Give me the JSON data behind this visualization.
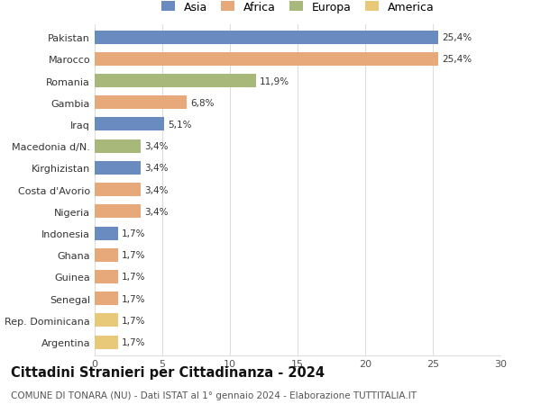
{
  "categories": [
    "Pakistan",
    "Marocco",
    "Romania",
    "Gambia",
    "Iraq",
    "Macedonia d/N.",
    "Kirghizistan",
    "Costa d'Avorio",
    "Nigeria",
    "Indonesia",
    "Ghana",
    "Guinea",
    "Senegal",
    "Rep. Dominicana",
    "Argentina"
  ],
  "values": [
    25.4,
    25.4,
    11.9,
    6.8,
    5.1,
    3.4,
    3.4,
    3.4,
    3.4,
    1.7,
    1.7,
    1.7,
    1.7,
    1.7,
    1.7
  ],
  "labels": [
    "25,4%",
    "25,4%",
    "11,9%",
    "6,8%",
    "5,1%",
    "3,4%",
    "3,4%",
    "3,4%",
    "3,4%",
    "1,7%",
    "1,7%",
    "1,7%",
    "1,7%",
    "1,7%",
    "1,7%"
  ],
  "continents": [
    "Asia",
    "Africa",
    "Europa",
    "Africa",
    "Asia",
    "Europa",
    "Asia",
    "Africa",
    "Africa",
    "Asia",
    "Africa",
    "Africa",
    "Africa",
    "America",
    "America"
  ],
  "continent_colors": {
    "Asia": "#6a8bbf",
    "Africa": "#e8a97a",
    "Europa": "#a8b87a",
    "America": "#e8c97a"
  },
  "legend_order": [
    "Asia",
    "Africa",
    "Europa",
    "America"
  ],
  "title": "Cittadini Stranieri per Cittadinanza - 2024",
  "subtitle": "COMUNE DI TONARA (NU) - Dati ISTAT al 1° gennaio 2024 - Elaborazione TUTTITALIA.IT",
  "xlim": [
    0,
    30
  ],
  "xticks": [
    0,
    5,
    10,
    15,
    20,
    25,
    30
  ],
  "background_color": "#ffffff",
  "grid_color": "#dddddd",
  "bar_height": 0.62,
  "title_fontsize": 10.5,
  "subtitle_fontsize": 7.5,
  "label_fontsize": 7.5,
  "tick_fontsize": 8,
  "legend_fontsize": 9
}
